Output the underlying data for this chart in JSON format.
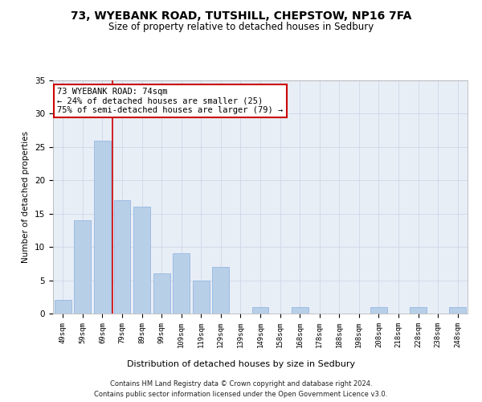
{
  "title_line1": "73, WYEBANK ROAD, TUTSHILL, CHEPSTOW, NP16 7FA",
  "title_line2": "Size of property relative to detached houses in Sedbury",
  "xlabel": "Distribution of detached houses by size in Sedbury",
  "ylabel": "Number of detached properties",
  "categories": [
    "49sqm",
    "59sqm",
    "69sqm",
    "79sqm",
    "89sqm",
    "99sqm",
    "109sqm",
    "119sqm",
    "129sqm",
    "139sqm",
    "149sqm",
    "158sqm",
    "168sqm",
    "178sqm",
    "188sqm",
    "198sqm",
    "208sqm",
    "218sqm",
    "228sqm",
    "238sqm",
    "248sqm"
  ],
  "values": [
    2,
    14,
    26,
    17,
    16,
    6,
    9,
    5,
    7,
    0,
    1,
    0,
    1,
    0,
    0,
    0,
    1,
    0,
    1,
    0,
    1
  ],
  "bar_color": "#b8cfe8",
  "bar_edgecolor": "#8aafe0",
  "annotation_box_text": "73 WYEBANK ROAD: 74sqm\n← 24% of detached houses are smaller (25)\n75% of semi-detached houses are larger (79) →",
  "annotation_box_color": "#ffffff",
  "annotation_box_edgecolor": "#cc0000",
  "red_line_color": "#cc0000",
  "grid_color": "#d0d8e8",
  "background_color": "#e8eef6",
  "footer_line1": "Contains HM Land Registry data © Crown copyright and database right 2024.",
  "footer_line2": "Contains public sector information licensed under the Open Government Licence v3.0.",
  "ylim": [
    0,
    35
  ],
  "yticks": [
    0,
    5,
    10,
    15,
    20,
    25,
    30,
    35
  ]
}
